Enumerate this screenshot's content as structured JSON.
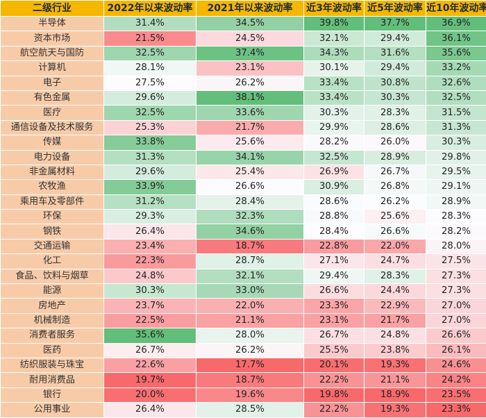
{
  "headers": [
    "二级行业",
    "2022年以来波动率",
    "2021年以来波动率",
    "近3年波动率",
    "近5年波动率",
    "近10年波动率"
  ],
  "rows": [
    {
      "name": "半导体",
      "values": [
        "31.4%",
        "34.5%",
        "39.8%",
        "37.7%",
        "36.9%"
      ]
    },
    {
      "name": "资本市场",
      "values": [
        "21.5%",
        "24.5%",
        "32.1%",
        "29.4%",
        "36.1%"
      ]
    },
    {
      "name": "航空航天与国防",
      "values": [
        "32.5%",
        "37.4%",
        "34.3%",
        "31.6%",
        "35.6%"
      ]
    },
    {
      "name": "计算机",
      "values": [
        "28.1%",
        "23.1%",
        "30.1%",
        "29.4%",
        "33.2%"
      ]
    },
    {
      "name": "电子",
      "values": [
        "27.5%",
        "26.2%",
        "33.4%",
        "30.8%",
        "32.6%"
      ]
    },
    {
      "name": "有色金属",
      "values": [
        "29.6%",
        "38.1%",
        "33.4%",
        "30.3%",
        "32.5%"
      ]
    },
    {
      "name": "医疗",
      "values": [
        "32.5%",
        "33.6%",
        "30.3%",
        "28.3%",
        "31.5%"
      ]
    },
    {
      "name": "通信设备及技术服务",
      "values": [
        "25.3%",
        "21.7%",
        "29.9%",
        "28.6%",
        "31.3%"
      ]
    },
    {
      "name": "传媒",
      "values": [
        "33.8%",
        "25.6%",
        "28.2%",
        "26.0%",
        "30.3%"
      ]
    },
    {
      "name": "电力设备",
      "values": [
        "31.3%",
        "34.1%",
        "32.5%",
        "28.9%",
        "29.8%"
      ]
    },
    {
      "name": "非金属材料",
      "values": [
        "29.6%",
        "25.4%",
        "26.9%",
        "26.7%",
        "29.5%"
      ]
    },
    {
      "name": "农牧渔",
      "values": [
        "33.9%",
        "26.6%",
        "30.9%",
        "26.8%",
        "29.1%"
      ]
    },
    {
      "name": "乘用车及零部件",
      "values": [
        "31.2%",
        "28.4%",
        "28.6%",
        "26.2%",
        "28.9%"
      ]
    },
    {
      "name": "环保",
      "values": [
        "29.3%",
        "32.3%",
        "28.8%",
        "25.6%",
        "28.3%"
      ]
    },
    {
      "name": "钢铁",
      "values": [
        "26.4%",
        "34.6%",
        "28.4%",
        "26.6%",
        "28.2%"
      ]
    },
    {
      "name": "交通运输",
      "values": [
        "23.4%",
        "18.7%",
        "22.8%",
        "22.0%",
        "28.0%"
      ]
    },
    {
      "name": "化工",
      "values": [
        "22.3%",
        "28.7%",
        "27.1%",
        "24.7%",
        "27.5%"
      ]
    },
    {
      "name": "食品、饮料与烟草",
      "values": [
        "24.8%",
        "32.1%",
        "29.4%",
        "28.3%",
        "27.3%"
      ]
    },
    {
      "name": "能源",
      "values": [
        "30.3%",
        "33.0%",
        "26.6%",
        "24.4%",
        "27.3%"
      ]
    },
    {
      "name": "房地产",
      "values": [
        "23.7%",
        "22.0%",
        "23.3%",
        "22.9%",
        "27.0%"
      ]
    },
    {
      "name": "机械制造",
      "values": [
        "22.5%",
        "21.1%",
        "23.1%",
        "21.7%",
        "27.0%"
      ]
    },
    {
      "name": "消费者服务",
      "values": [
        "35.6%",
        "28.0%",
        "26.7%",
        "24.8%",
        "26.6%"
      ]
    },
    {
      "name": "医药",
      "values": [
        "26.7%",
        "26.2%",
        "25.5%",
        "23.8%",
        "26.1%"
      ]
    },
    {
      "name": "纺织服装与珠宝",
      "values": [
        "22.6%",
        "17.7%",
        "20.1%",
        "19.3%",
        "24.6%"
      ]
    },
    {
      "name": "耐用消费品",
      "values": [
        "19.7%",
        "18.7%",
        "22.2%",
        "21.1%",
        "24.2%"
      ]
    },
    {
      "name": "银行",
      "values": [
        "20.0%",
        "19.6%",
        "19.8%",
        "18.9%",
        "23.5%"
      ]
    },
    {
      "name": "公用事业",
      "values": [
        "26.4%",
        "28.5%",
        "22.2%",
        "19.3%",
        "23.3%"
      ]
    }
  ],
  "colors": {
    "header_bg": "#f5b700",
    "name_bg": "#f8cba8",
    "high": "#63be7b",
    "mid": "#fcfcff",
    "low": "#f8696b"
  }
}
